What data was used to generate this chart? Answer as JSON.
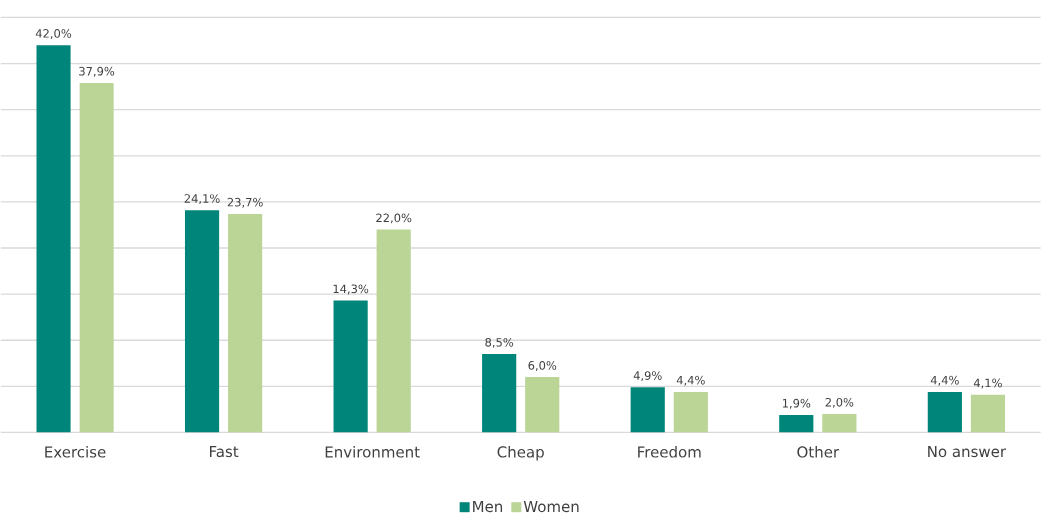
{
  "chart_data": {
    "type": "bar",
    "categories": [
      "Exercise",
      "Fast",
      "Environment",
      "Cheap",
      "Freedom",
      "Other",
      "No answer"
    ],
    "series": [
      {
        "name": "Men",
        "color": "#00857a",
        "values": [
          42.0,
          24.1,
          14.3,
          8.5,
          4.9,
          1.9,
          4.4
        ],
        "value_labels": [
          "42,0%",
          "24,1%",
          "14,3%",
          "8,5%",
          "4,9%",
          "1,9%",
          "4,4%"
        ]
      },
      {
        "name": "Women",
        "color": "#bad596",
        "values": [
          37.9,
          23.7,
          22.0,
          6.0,
          4.4,
          2.0,
          4.1
        ],
        "value_labels": [
          "37,9%",
          "23,7%",
          "22,0%",
          "6,0%",
          "4,4%",
          "2,0%",
          "4,1%"
        ]
      }
    ],
    "ylim": [
      0,
      45
    ],
    "yticks": [
      {
        "value": 0,
        "label": null
      },
      {
        "value": 5,
        "label": null
      },
      {
        "value": 10,
        "label": null
      },
      {
        "value": 15,
        "label": null
      },
      {
        "value": 20,
        "label": null
      },
      {
        "value": 25,
        "label": null
      },
      {
        "value": 30,
        "label": null
      },
      {
        "value": 35,
        "label": null
      },
      {
        "value": 40,
        "label": null
      },
      {
        "value": 45,
        "label": null
      }
    ],
    "grid": "y",
    "legend": "bottom",
    "tick_labels": "x"
  }
}
